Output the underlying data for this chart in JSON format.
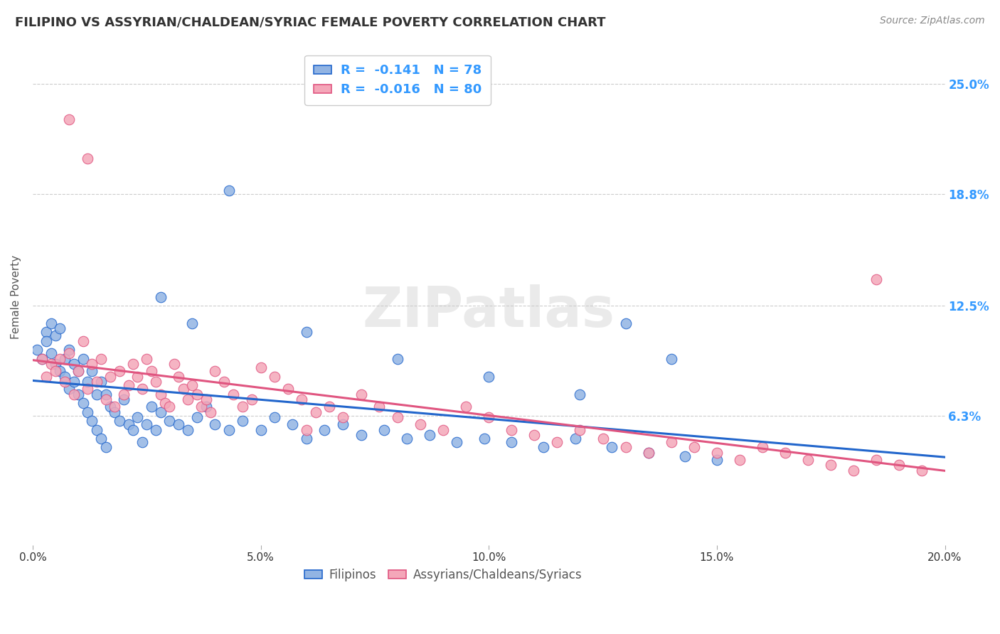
{
  "title": "FILIPINO VS ASSYRIAN/CHALDEAN/SYRIAC FEMALE POVERTY CORRELATION CHART",
  "source": "Source: ZipAtlas.com",
  "ylabel": "Female Poverty",
  "ytick_labels": [
    "25.0%",
    "18.8%",
    "12.5%",
    "6.3%"
  ],
  "ytick_values": [
    0.25,
    0.188,
    0.125,
    0.063
  ],
  "xlim": [
    0.0,
    0.2
  ],
  "ylim": [
    -0.01,
    0.27
  ],
  "legend_entry1": "R =  -0.141   N = 78",
  "legend_entry2": "R =  -0.016   N = 80",
  "color_filipino": "#92b4e3",
  "color_assyrian": "#f4a7b9",
  "color_line_filipino": "#2266cc",
  "color_line_assyrian": "#e05580",
  "watermark": "ZIPatlas",
  "legend_label1": "Filipinos",
  "legend_label2": "Assyrians/Chaldeans/Syriacs",
  "fil_x": [
    0.001,
    0.002,
    0.003,
    0.003,
    0.004,
    0.004,
    0.005,
    0.005,
    0.006,
    0.006,
    0.007,
    0.007,
    0.008,
    0.008,
    0.009,
    0.009,
    0.01,
    0.01,
    0.011,
    0.011,
    0.012,
    0.012,
    0.013,
    0.013,
    0.014,
    0.014,
    0.015,
    0.015,
    0.016,
    0.016,
    0.017,
    0.018,
    0.019,
    0.02,
    0.021,
    0.022,
    0.023,
    0.024,
    0.025,
    0.026,
    0.027,
    0.028,
    0.03,
    0.032,
    0.034,
    0.036,
    0.038,
    0.04,
    0.043,
    0.046,
    0.05,
    0.053,
    0.057,
    0.06,
    0.064,
    0.068,
    0.072,
    0.077,
    0.082,
    0.087,
    0.093,
    0.099,
    0.105,
    0.112,
    0.119,
    0.127,
    0.135,
    0.143,
    0.043,
    0.15,
    0.06,
    0.08,
    0.1,
    0.12,
    0.13,
    0.14,
    0.028,
    0.035
  ],
  "fil_y": [
    0.1,
    0.095,
    0.11,
    0.105,
    0.098,
    0.115,
    0.092,
    0.108,
    0.088,
    0.112,
    0.095,
    0.085,
    0.1,
    0.078,
    0.092,
    0.082,
    0.088,
    0.075,
    0.095,
    0.07,
    0.082,
    0.065,
    0.088,
    0.06,
    0.075,
    0.055,
    0.082,
    0.05,
    0.075,
    0.045,
    0.068,
    0.065,
    0.06,
    0.072,
    0.058,
    0.055,
    0.062,
    0.048,
    0.058,
    0.068,
    0.055,
    0.065,
    0.06,
    0.058,
    0.055,
    0.062,
    0.068,
    0.058,
    0.055,
    0.06,
    0.055,
    0.062,
    0.058,
    0.05,
    0.055,
    0.058,
    0.052,
    0.055,
    0.05,
    0.052,
    0.048,
    0.05,
    0.048,
    0.045,
    0.05,
    0.045,
    0.042,
    0.04,
    0.19,
    0.038,
    0.11,
    0.095,
    0.085,
    0.075,
    0.115,
    0.095,
    0.13,
    0.115
  ],
  "ass_x": [
    0.002,
    0.003,
    0.004,
    0.005,
    0.006,
    0.007,
    0.008,
    0.009,
    0.01,
    0.011,
    0.012,
    0.013,
    0.014,
    0.015,
    0.016,
    0.017,
    0.018,
    0.019,
    0.02,
    0.021,
    0.022,
    0.023,
    0.024,
    0.025,
    0.026,
    0.027,
    0.028,
    0.029,
    0.03,
    0.031,
    0.032,
    0.033,
    0.034,
    0.035,
    0.036,
    0.037,
    0.038,
    0.039,
    0.04,
    0.042,
    0.044,
    0.046,
    0.048,
    0.05,
    0.053,
    0.056,
    0.059,
    0.062,
    0.065,
    0.068,
    0.072,
    0.076,
    0.08,
    0.085,
    0.09,
    0.095,
    0.1,
    0.105,
    0.11,
    0.115,
    0.12,
    0.125,
    0.13,
    0.135,
    0.14,
    0.145,
    0.15,
    0.155,
    0.16,
    0.165,
    0.17,
    0.175,
    0.18,
    0.185,
    0.19,
    0.195,
    0.008,
    0.012,
    0.185,
    0.06
  ],
  "ass_y": [
    0.095,
    0.085,
    0.092,
    0.088,
    0.095,
    0.082,
    0.098,
    0.075,
    0.088,
    0.105,
    0.078,
    0.092,
    0.082,
    0.095,
    0.072,
    0.085,
    0.068,
    0.088,
    0.075,
    0.08,
    0.092,
    0.085,
    0.078,
    0.095,
    0.088,
    0.082,
    0.075,
    0.07,
    0.068,
    0.092,
    0.085,
    0.078,
    0.072,
    0.08,
    0.075,
    0.068,
    0.072,
    0.065,
    0.088,
    0.082,
    0.075,
    0.068,
    0.072,
    0.09,
    0.085,
    0.078,
    0.072,
    0.065,
    0.068,
    0.062,
    0.075,
    0.068,
    0.062,
    0.058,
    0.055,
    0.068,
    0.062,
    0.055,
    0.052,
    0.048,
    0.055,
    0.05,
    0.045,
    0.042,
    0.048,
    0.045,
    0.042,
    0.038,
    0.045,
    0.042,
    0.038,
    0.035,
    0.032,
    0.038,
    0.035,
    0.032,
    0.23,
    0.208,
    0.14,
    0.055
  ]
}
